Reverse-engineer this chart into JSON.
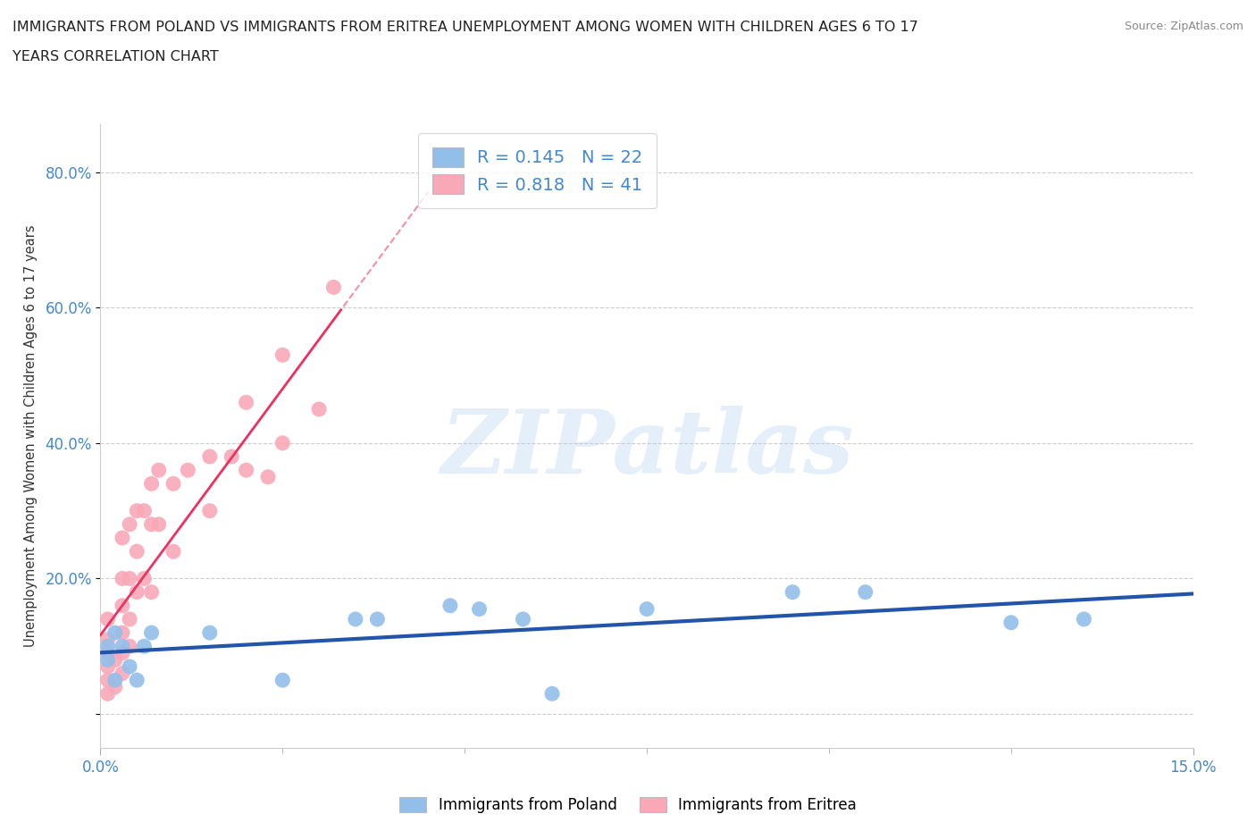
{
  "title_line1": "IMMIGRANTS FROM POLAND VS IMMIGRANTS FROM ERITREA UNEMPLOYMENT AMONG WOMEN WITH CHILDREN AGES 6 TO 17",
  "title_line2": "YEARS CORRELATION CHART",
  "source_text": "Source: ZipAtlas.com",
  "ylabel": "Unemployment Among Women with Children Ages 6 to 17 years",
  "xmin": 0.0,
  "xmax": 0.15,
  "ymin": -0.05,
  "ymax": 0.87,
  "poland_R": 0.145,
  "poland_N": 22,
  "eritrea_R": 0.818,
  "eritrea_N": 41,
  "poland_color": "#92BFEA",
  "eritrea_color": "#F9A8B8",
  "poland_line_color": "#2255AA",
  "eritrea_line_color": "#F03060",
  "poland_scatter_x": [
    0.001,
    0.001,
    0.002,
    0.002,
    0.003,
    0.004,
    0.005,
    0.006,
    0.007,
    0.015,
    0.025,
    0.035,
    0.038,
    0.048,
    0.052,
    0.058,
    0.062,
    0.075,
    0.095,
    0.105,
    0.125,
    0.135
  ],
  "poland_scatter_y": [
    0.08,
    0.1,
    0.05,
    0.12,
    0.1,
    0.07,
    0.05,
    0.1,
    0.12,
    0.12,
    0.05,
    0.14,
    0.14,
    0.16,
    0.155,
    0.14,
    0.03,
    0.155,
    0.18,
    0.18,
    0.135,
    0.14
  ],
  "eritrea_scatter_x": [
    0.001,
    0.001,
    0.001,
    0.001,
    0.001,
    0.001,
    0.002,
    0.002,
    0.003,
    0.003,
    0.003,
    0.003,
    0.003,
    0.003,
    0.004,
    0.004,
    0.004,
    0.004,
    0.005,
    0.005,
    0.005,
    0.006,
    0.006,
    0.007,
    0.007,
    0.007,
    0.008,
    0.008,
    0.01,
    0.01,
    0.012,
    0.015,
    0.015,
    0.018,
    0.02,
    0.02,
    0.023,
    0.025,
    0.025,
    0.03,
    0.032
  ],
  "eritrea_scatter_y": [
    0.03,
    0.05,
    0.07,
    0.09,
    0.11,
    0.14,
    0.04,
    0.08,
    0.06,
    0.09,
    0.12,
    0.16,
    0.2,
    0.26,
    0.1,
    0.14,
    0.2,
    0.28,
    0.18,
    0.24,
    0.3,
    0.2,
    0.3,
    0.18,
    0.28,
    0.34,
    0.28,
    0.36,
    0.24,
    0.34,
    0.36,
    0.3,
    0.38,
    0.38,
    0.36,
    0.46,
    0.35,
    0.4,
    0.53,
    0.45,
    0.63
  ],
  "ytick_positions": [
    0.0,
    0.2,
    0.4,
    0.6,
    0.8
  ],
  "ytick_labels": [
    "",
    "20.0%",
    "40.0%",
    "60.0%",
    "80.0%"
  ],
  "xtick_positions": [
    0.0,
    0.15
  ],
  "xtick_labels": [
    "0.0%",
    "15.0%"
  ],
  "watermark_text": "ZIPatlas",
  "legend_label_poland": "Immigrants from Poland",
  "legend_label_eritrea": "Immigrants from Eritrea",
  "background_color": "#FFFFFF",
  "grid_color": "#CCCCCC",
  "title_color": "#222222",
  "tick_label_color": "#4488CC"
}
